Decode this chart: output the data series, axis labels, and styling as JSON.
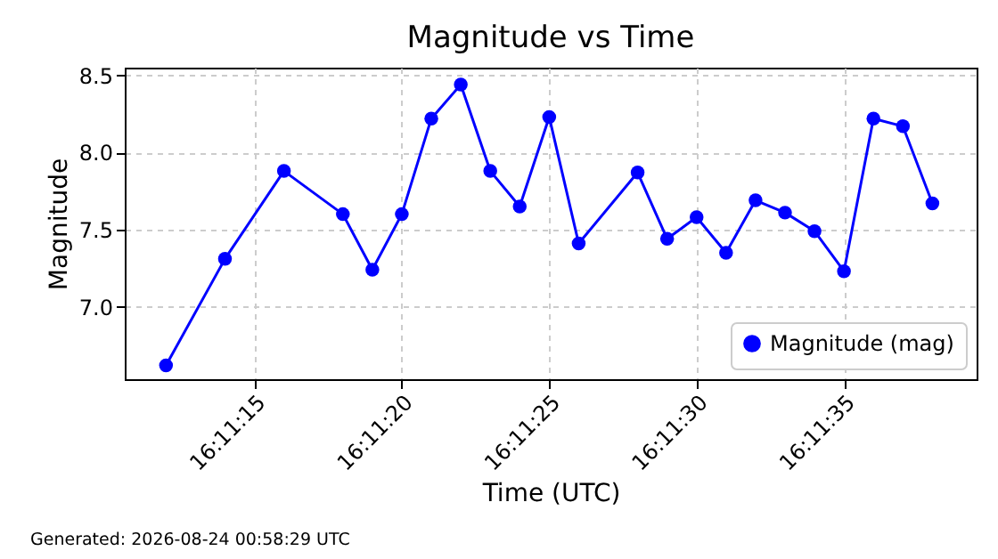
{
  "chart_data": {
    "type": "line",
    "title": "Magnitude vs Time",
    "xlabel": "Time (UTC)",
    "ylabel": "Magnitude",
    "x": [
      "2026-08-23T16:11:12",
      "2026-08-23T16:11:14",
      "2026-08-23T16:11:16",
      "2026-08-23T16:11:18",
      "2026-08-23T16:11:19",
      "2026-08-23T16:11:20",
      "2026-08-23T16:11:21",
      "2026-08-23T16:11:22",
      "2026-08-23T16:11:23",
      "2026-08-23T16:11:24",
      "2026-08-23T16:11:25",
      "2026-08-23T16:11:26",
      "2026-08-23T16:11:28",
      "2026-08-23T16:11:29",
      "2026-08-23T16:11:30",
      "2026-08-23T16:11:31",
      "2026-08-23T16:11:32",
      "2026-08-23T16:11:33",
      "2026-08-23T16:11:34",
      "2026-08-23T16:11:35",
      "2026-08-23T16:11:36",
      "2026-08-23T16:11:37",
      "2026-08-23T16:11:38"
    ],
    "series": [
      {
        "name": "Magnitude (mag)",
        "color": "#0000ff",
        "values": [
          6.62,
          7.31,
          7.88,
          7.6,
          7.24,
          7.6,
          8.22,
          8.44,
          7.88,
          7.65,
          8.23,
          7.41,
          7.87,
          7.44,
          7.58,
          7.35,
          7.69,
          7.61,
          7.49,
          7.23,
          8.22,
          8.17,
          7.67
        ]
      }
    ],
    "xlim": [
      "2026-08-23T16:11:10.6",
      "2026-08-23T16:11:39.5"
    ],
    "xticks": [
      {
        "value": "2026-08-23T16:11:15",
        "label": "16:11:15"
      },
      {
        "value": "2026-08-23T16:11:20",
        "label": "16:11:20"
      },
      {
        "value": "2026-08-23T16:11:25",
        "label": "16:11:25"
      },
      {
        "value": "2026-08-23T16:11:30",
        "label": "16:11:30"
      },
      {
        "value": "2026-08-23T16:11:35",
        "label": "16:11:35"
      }
    ],
    "ylim": [
      6.53,
      8.55
    ],
    "yticks": [
      {
        "value": 7,
        "label": "7.0"
      },
      {
        "value": 7.5,
        "label": "7.5"
      },
      {
        "value": 8,
        "label": "8.0"
      },
      {
        "value": 8.5,
        "label": "8.5"
      }
    ],
    "grid": true,
    "legend": "bottom right",
    "marker": "circle",
    "line_style": "solid",
    "annotations": [
      "Generated: 2026-08-24 00:58:29 UTC"
    ]
  }
}
